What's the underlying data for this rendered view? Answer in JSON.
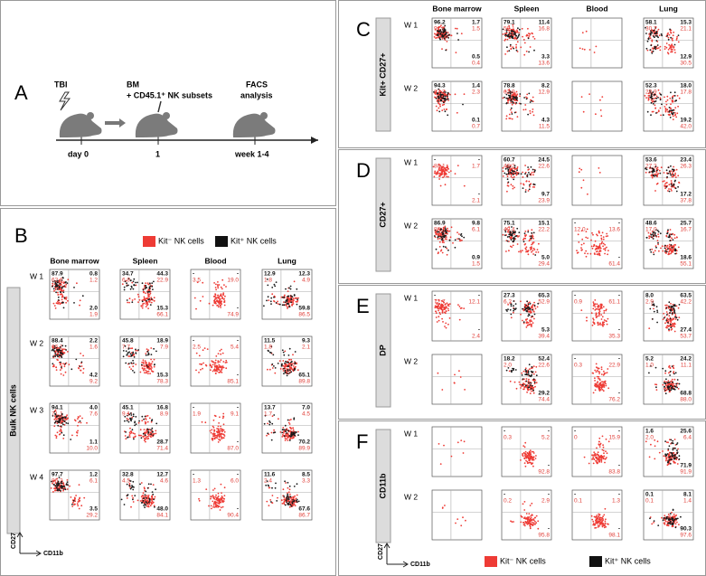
{
  "panel_a": {
    "letter": "A",
    "tbi": "TBI",
    "day0": "day 0",
    "bm": "BM",
    "bm_sub": "+ CD45.1⁺ NK subsets",
    "day1": "1",
    "facs": "FACS",
    "analysis": "analysis",
    "week": "week 1-4"
  },
  "panels": [
    {
      "letter": "B",
      "label": "Bulk NK cells",
      "columns": [
        "Bone marrow",
        "Spleen",
        "Blood",
        "Lung"
      ],
      "legend": [
        "Kit⁻ NK cells",
        "Kit⁺ NK cells"
      ],
      "y_axis": "CD27",
      "x_axis": "CD11b",
      "rows": [
        {
          "week": "W 1",
          "plots": [
            {
              "tl": [
                "87.9",
                "62.6"
              ],
              "tr": [
                "0.8",
                "1.2"
              ],
              "br": [
                "2.0",
                "1.9"
              ]
            },
            {
              "tl": [
                "34.7",
                "6.9"
              ],
              "tr": [
                "44.3",
                "22.9"
              ],
              "br": [
                "15.3",
                "66.1"
              ]
            },
            {
              "tl": [
                "-",
                "3.5"
              ],
              "tr": [
                "-",
                "19.0"
              ],
              "br": [
                "-",
                "74.9"
              ]
            },
            {
              "tl": [
                "12.9",
                "1.8"
              ],
              "tr": [
                "12.3",
                "4.9"
              ],
              "br": [
                "59.8",
                "86.5"
              ]
            }
          ]
        },
        {
          "week": "W 2",
          "plots": [
            {
              "tl": [
                "88.4",
                "66.1"
              ],
              "tr": [
                "2.2",
                "1.6"
              ],
              "br": [
                "4.2",
                "9.2"
              ]
            },
            {
              "tl": [
                "45.8",
                "7.7"
              ],
              "tr": [
                "18.9",
                "7.9"
              ],
              "br": [
                "15.3",
                "78.3"
              ]
            },
            {
              "tl": [
                "-",
                "2.5"
              ],
              "tr": [
                "-",
                "5.4"
              ],
              "br": [
                "-",
                "85.1"
              ]
            },
            {
              "tl": [
                "11.5",
                "1.8"
              ],
              "tr": [
                "9.3",
                "2.1"
              ],
              "br": [
                "65.1",
                "89.8"
              ]
            }
          ]
        },
        {
          "week": "W 3",
          "plots": [
            {
              "tl": [
                "94.1",
                "71.1"
              ],
              "tr": [
                "4.0",
                "7.6"
              ],
              "br": [
                "1.1",
                "10.0"
              ]
            },
            {
              "tl": [
                "45.1",
                "9.1"
              ],
              "tr": [
                "16.8",
                "8.9"
              ],
              "br": [
                "28.7",
                "71.4"
              ]
            },
            {
              "tl": [
                "-",
                "1.9"
              ],
              "tr": [
                "-",
                "9.1"
              ],
              "br": [
                "-",
                "87.0"
              ]
            },
            {
              "tl": [
                "13.7",
                "1.7"
              ],
              "tr": [
                "7.0",
                "4.5"
              ],
              "br": [
                "70.2",
                "89.9"
              ]
            }
          ]
        },
        {
          "week": "W 4",
          "plots": [
            {
              "tl": [
                "97.7",
                "86.2"
              ],
              "tr": [
                "1.2",
                "6.1"
              ],
              "br": [
                "3.5",
                "29.2"
              ]
            },
            {
              "tl": [
                "32.8",
                "4.5"
              ],
              "tr": [
                "12.7",
                "4.6"
              ],
              "br": [
                "48.0",
                "84.1"
              ]
            },
            {
              "tl": [
                "-",
                "1.3"
              ],
              "tr": [
                "-",
                "6.0"
              ],
              "br": [
                "-",
                "90.4"
              ]
            },
            {
              "tl": [
                "11.6",
                "2.4"
              ],
              "tr": [
                "8.5",
                "3.3"
              ],
              "br": [
                "67.6",
                "86.7"
              ]
            }
          ]
        }
      ]
    },
    {
      "letter": "C",
      "label": "Kit+ CD27+",
      "columns": [
        "Bone marrow",
        "Spleen",
        "Blood",
        "Lung"
      ],
      "rows": [
        {
          "week": "W 1",
          "plots": [
            {
              "tl": [
                "96.2",
                "91.7"
              ],
              "tr": [
                "1.7",
                "1.5"
              ],
              "br": [
                "0.5",
                "0.4"
              ]
            },
            {
              "tl": [
                "79.1",
                "57.1"
              ],
              "tr": [
                "11.4",
                "16.8"
              ],
              "br": [
                "3.3",
                "13.6"
              ]
            },
            null,
            {
              "tl": [
                "58.1",
                "30.7"
              ],
              "tr": [
                "15.3",
                "21.1"
              ],
              "br": [
                "12.9",
                "30.5"
              ]
            }
          ]
        },
        {
          "week": "W 2",
          "plots": [
            {
              "tl": [
                "94.3",
                "87.2"
              ],
              "tr": [
                "1.4",
                "2.3"
              ],
              "br": [
                "0.1",
                "0.7"
              ]
            },
            {
              "tl": [
                "78.8",
                "62.9"
              ],
              "tr": [
                "8.2",
                "12.9"
              ],
              "br": [
                "4.3",
                "11.5"
              ]
            },
            null,
            {
              "tl": [
                "52.3",
                "28.9"
              ],
              "tr": [
                "18.0",
                "17.8"
              ],
              "br": [
                "19.2",
                "42.0"
              ]
            }
          ]
        }
      ]
    },
    {
      "letter": "D",
      "label": "CD27+",
      "rows": [
        {
          "week": "W 1",
          "plots": [
            {
              "tl": [
                "-",
                "88.1"
              ],
              "tr": [
                "-",
                "1.7"
              ],
              "br": [
                "-",
                "2.1"
              ]
            },
            {
              "tl": [
                "60.7",
                "46.2"
              ],
              "tr": [
                "24.5",
                "22.6"
              ],
              "br": [
                "9.7",
                "23.9"
              ]
            },
            null,
            {
              "tl": [
                "53.6",
                "27.2"
              ],
              "tr": [
                "23.4",
                "26.3"
              ],
              "br": [
                "17.2",
                "37.8"
              ]
            }
          ]
        },
        {
          "week": "W 2",
          "plots": [
            {
              "tl": [
                "86.9",
                "86.4"
              ],
              "tr": [
                "9.8",
                "6.1"
              ],
              "br": [
                "0.9",
                "1.5"
              ]
            },
            {
              "tl": [
                "75.1",
                "40.4"
              ],
              "tr": [
                "15.1",
                "22.2"
              ],
              "br": [
                "5.0",
                "29.4"
              ]
            },
            {
              "tl": [
                "-",
                "12.0"
              ],
              "tr": [
                "-",
                "13.6"
              ],
              "br": [
                "-",
                "61.4"
              ]
            },
            {
              "tl": [
                "48.6",
                "17.0"
              ],
              "tr": [
                "25.7",
                "16.7"
              ],
              "br": [
                "18.6",
                "55.1"
              ]
            }
          ]
        }
      ]
    },
    {
      "letter": "E",
      "label": "DP",
      "rows": [
        {
          "week": "W 1",
          "plots": [
            {
              "tl": [
                "-",
                "72.7"
              ],
              "tr": [
                "-",
                "12.1"
              ],
              "br": [
                "-",
                "2.4"
              ]
            },
            {
              "tl": [
                "27.3",
                "6.2"
              ],
              "tr": [
                "65.3",
                "52.9"
              ],
              "br": [
                "5.3",
                "39.4"
              ]
            },
            {
              "tl": [
                "-",
                "0.9"
              ],
              "tr": [
                "-",
                "61.1"
              ],
              "br": [
                "-",
                "35.3"
              ]
            },
            {
              "tl": [
                "8.0",
                "2.9"
              ],
              "tr": [
                "63.5",
                "42.2"
              ],
              "br": [
                "27.4",
                "53.7"
              ]
            }
          ]
        },
        {
          "week": "W 2",
          "plots": [
            null,
            {
              "tl": [
                "18.2",
                "2.0"
              ],
              "tr": [
                "52.4",
                "22.6"
              ],
              "br": [
                "29.2",
                "74.4"
              ]
            },
            {
              "tl": [
                "-",
                "0.3"
              ],
              "tr": [
                "-",
                "22.9"
              ],
              "br": [
                "-",
                "76.2"
              ]
            },
            {
              "tl": [
                "5.2",
                "1.0"
              ],
              "tr": [
                "24.2",
                "11.1"
              ],
              "br": [
                "68.8",
                "88.0"
              ]
            }
          ]
        }
      ]
    },
    {
      "letter": "F",
      "label": "CD11b",
      "legend": [
        "Kit⁻ NK cells",
        "Kit⁺ NK cells"
      ],
      "y_axis": "CD27",
      "x_axis": "CD11b",
      "rows": [
        {
          "week": "W 1",
          "plots": [
            null,
            {
              "tl": [
                "-",
                "0.3"
              ],
              "tr": [
                "-",
                "5.2"
              ],
              "br": [
                "-",
                "92.8"
              ]
            },
            {
              "tl": [
                "-",
                "0"
              ],
              "tr": [
                "-",
                "15.9"
              ],
              "br": [
                "-",
                "83.8"
              ]
            },
            {
              "tl": [
                "1.6",
                "2.0"
              ],
              "tr": [
                "25.6",
                "6.4"
              ],
              "br": [
                "71.9",
                "91.9"
              ]
            }
          ]
        },
        {
          "week": "W 2",
          "plots": [
            null,
            {
              "tl": [
                "-",
                "0.2"
              ],
              "tr": [
                "-",
                "2.9"
              ],
              "br": [
                "-",
                "95.8"
              ]
            },
            {
              "tl": [
                "-",
                "0.1"
              ],
              "tr": [
                "-",
                "1.3"
              ],
              "br": [
                "-",
                "98.1"
              ]
            },
            {
              "tl": [
                "0.1",
                "0.1"
              ],
              "tr": [
                "8.1",
                "1.4"
              ],
              "br": [
                "90.3",
                "97.6"
              ]
            }
          ]
        }
      ]
    }
  ]
}
